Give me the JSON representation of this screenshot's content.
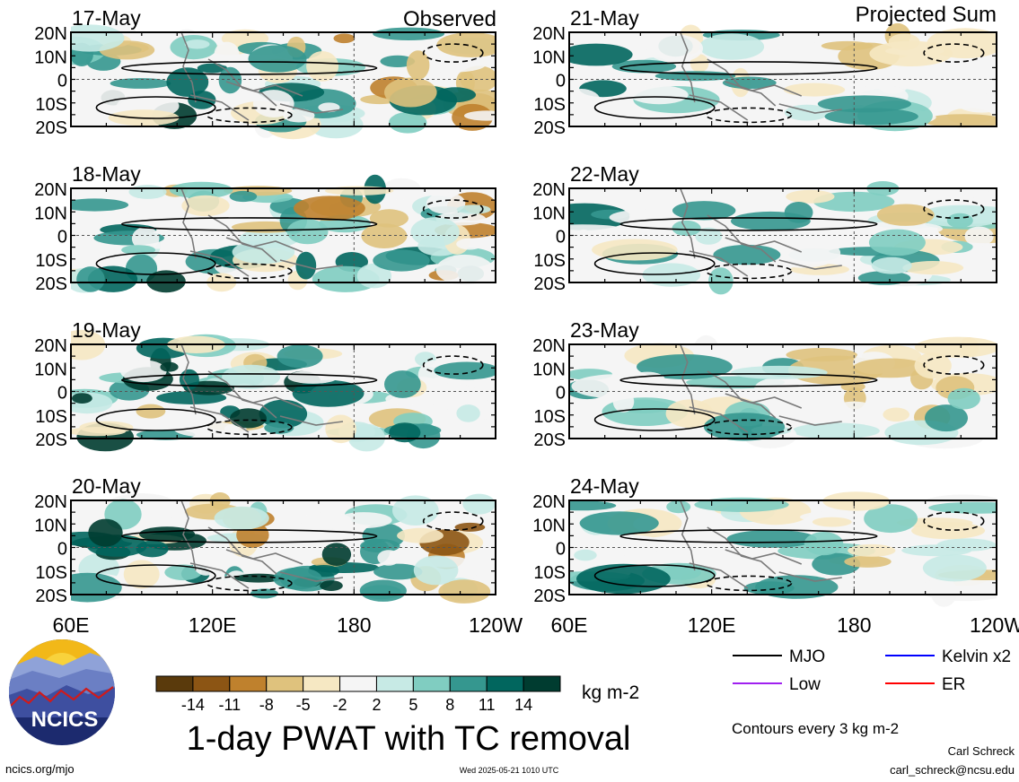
{
  "header": {
    "observed_label": "Observed",
    "projected_label": "Projected Sum"
  },
  "chart_data": {
    "type": "heatmap",
    "title": "1-day PWAT with TC removal",
    "units": "kg m-2",
    "x_ticks": [
      "60E",
      "120E",
      "180",
      "120W"
    ],
    "y_ticks": [
      "20N",
      "10N",
      "0",
      "10S",
      "20S"
    ],
    "colorbar": {
      "labels": [
        "-14",
        "-11",
        "-8",
        "-5",
        "-2",
        "2",
        "5",
        "8",
        "11",
        "14"
      ],
      "colors": [
        "#5a3a0c",
        "#8c5514",
        "#bf812d",
        "#dfc27d",
        "#f6e8c3",
        "#f5f5f5",
        "#c7eae5",
        "#80cdc1",
        "#35978f",
        "#01665e",
        "#003c30"
      ]
    },
    "panels": [
      {
        "date": "17-May",
        "mode": "observed"
      },
      {
        "date": "18-May",
        "mode": "observed"
      },
      {
        "date": "19-May",
        "mode": "observed"
      },
      {
        "date": "20-May",
        "mode": "observed"
      },
      {
        "date": "21-May",
        "mode": "projected"
      },
      {
        "date": "22-May",
        "mode": "projected"
      },
      {
        "date": "23-May",
        "mode": "projected"
      },
      {
        "date": "24-May",
        "mode": "projected"
      }
    ],
    "legend": [
      {
        "name": "MJO",
        "color": "#000000"
      },
      {
        "name": "Kelvin x2",
        "color": "#0000ff"
      },
      {
        "name": "Low",
        "color": "#a020f0"
      },
      {
        "name": "ER",
        "color": "#ff0000"
      }
    ],
    "contour_note": "Contours every 3 kg m-2"
  },
  "footer": {
    "logo_text": "NCICS",
    "site": "ncics.org/mjo",
    "timestamp": "Wed 2025-05-21 1010 UTC",
    "author": "Carl Schreck",
    "email": "carl_schreck@ncsu.edu"
  }
}
